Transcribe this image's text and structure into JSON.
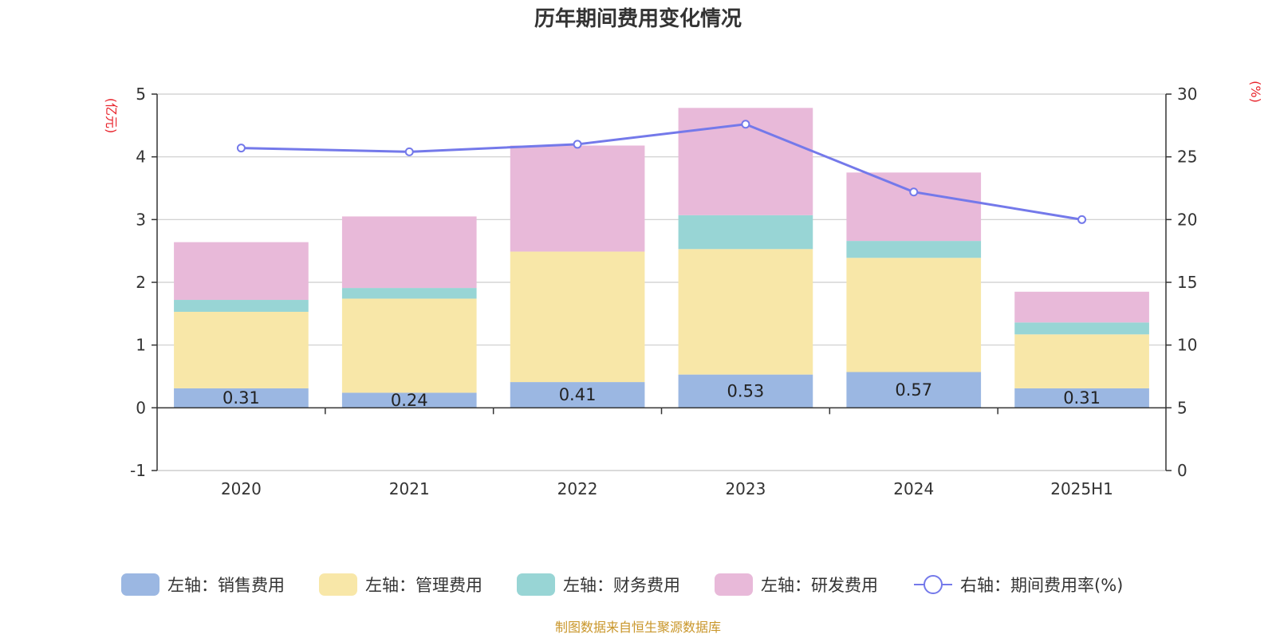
{
  "chart_data": {
    "type": "bar",
    "title": "历年期间费用变化情况",
    "categories": [
      "2020",
      "2021",
      "2022",
      "2023",
      "2024",
      "2025H1"
    ],
    "left_axis": {
      "unit": "(亿元)",
      "ylim": [
        -1,
        5
      ],
      "ticks": [
        -1,
        0,
        1,
        2,
        3,
        4,
        5
      ]
    },
    "right_axis": {
      "unit": "(%)",
      "ylim": [
        0,
        30
      ],
      "ticks": [
        0,
        5,
        10,
        15,
        20,
        25,
        30
      ]
    },
    "series": [
      {
        "name": "左轴：销售费用",
        "type": "bar",
        "axis": "left",
        "color": "#9bb7e2",
        "values": [
          0.31,
          0.24,
          0.41,
          0.53,
          0.57,
          0.31
        ],
        "labels": [
          "0.31",
          "0.24",
          "0.41",
          "0.53",
          "0.57",
          "0.31"
        ]
      },
      {
        "name": "左轴：管理费用",
        "type": "bar",
        "axis": "left",
        "color": "#f8e7a8",
        "values": [
          1.22,
          1.5,
          2.08,
          2.0,
          1.82,
          0.86
        ]
      },
      {
        "name": "左轴：财务费用",
        "type": "bar",
        "axis": "left",
        "color": "#98d5d5",
        "values": [
          0.19,
          0.17,
          0.0,
          0.54,
          0.27,
          0.19
        ]
      },
      {
        "name": "左轴：研发费用",
        "type": "bar",
        "axis": "left",
        "color": "#e8b9d9",
        "values": [
          0.92,
          1.14,
          1.69,
          1.71,
          1.09,
          0.49
        ]
      },
      {
        "name": "右轴：期间费用率(%)",
        "type": "line",
        "axis": "right",
        "color": "#7479ea",
        "values": [
          25.7,
          25.4,
          26.0,
          27.6,
          22.2,
          20.0
        ]
      }
    ],
    "grid": true,
    "legend_position": "bottom",
    "source": "制图数据来自恒生聚源数据库"
  }
}
